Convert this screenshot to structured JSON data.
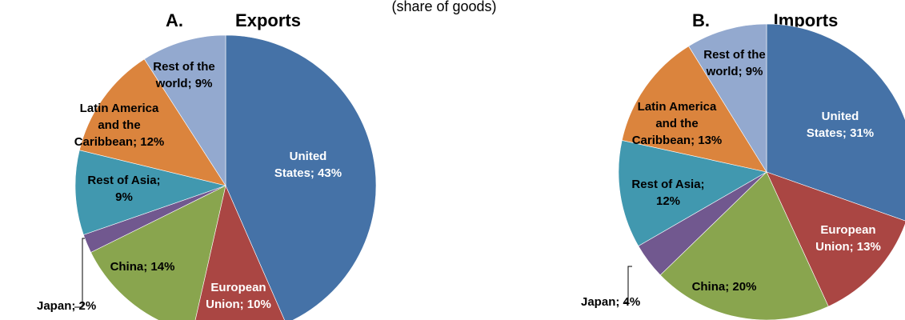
{
  "header_fragment": "(share of goods)",
  "chart_data": [
    {
      "type": "pie",
      "panel": "A.",
      "title": "Exports",
      "slices": [
        {
          "label": "United States; 43%",
          "value": 43,
          "color": "#4572A7"
        },
        {
          "label": "European Union; 10%",
          "value": 10,
          "color": "#AA4643"
        },
        {
          "label": "China; 14%",
          "value": 14,
          "color": "#89A54E"
        },
        {
          "label": "Japan; 2%",
          "value": 2,
          "color": "#71588F"
        },
        {
          "label": "Rest of Asia; 9%",
          "value": 9,
          "color": "#4198AF"
        },
        {
          "label": "Latin America and the Caribbean; 12%",
          "value": 12,
          "color": "#DB843D"
        },
        {
          "label": "Rest of the world; 9%",
          "value": 9,
          "color": "#93A9CF"
        }
      ]
    },
    {
      "type": "pie",
      "panel": "B.",
      "title": "Imports",
      "slices": [
        {
          "label": "United States; 31%",
          "value": 31,
          "color": "#4572A7"
        },
        {
          "label": "European Union; 13%",
          "value": 13,
          "color": "#AA4643"
        },
        {
          "label": "China; 20%",
          "value": 20,
          "color": "#89A54E"
        },
        {
          "label": "Japan; 4%",
          "value": 4,
          "color": "#71588F"
        },
        {
          "label": "Rest of Asia; 12%",
          "value": 12,
          "color": "#4198AF"
        },
        {
          "label": "Latin America and the Caribbean; 13%",
          "value": 13,
          "color": "#DB843D"
        },
        {
          "label": "Rest of the world; 9%",
          "value": 9,
          "color": "#93A9CF"
        }
      ]
    }
  ]
}
